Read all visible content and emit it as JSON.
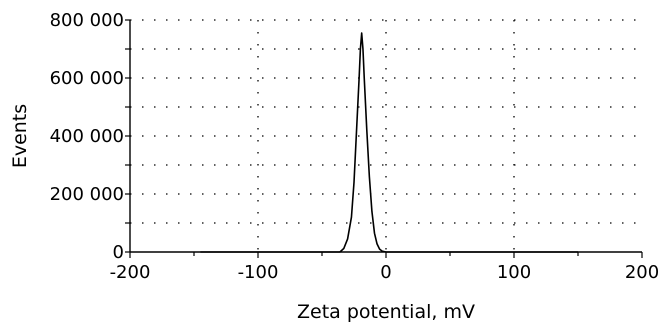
{
  "chart_data": {
    "type": "line",
    "title": "",
    "xlabel": "Zeta potential, mV",
    "ylabel": "Events",
    "xlim": [
      -200,
      200
    ],
    "ylim": [
      0,
      800000
    ],
    "x_ticks": [
      -200,
      -100,
      0,
      100,
      200
    ],
    "x_tick_labels": [
      "-200",
      "-100",
      "0",
      "100",
      "200"
    ],
    "y_ticks": [
      0,
      200000,
      400000,
      600000,
      800000
    ],
    "y_tick_labels": [
      "0",
      "200 000",
      "400 000",
      "600 000",
      "800 000"
    ],
    "grid": "dotted",
    "legend": "none",
    "series": [
      {
        "color": "#000000",
        "x": [
          -145,
          -50,
          -36,
          -33,
          -30,
          -27,
          -25,
          -23,
          -21,
          -20,
          -19,
          -18,
          -17,
          -15,
          -13,
          -11,
          -9,
          -7,
          -5,
          -3,
          0,
          150
        ],
        "y": [
          0,
          0,
          0,
          12000,
          45000,
          120000,
          240000,
          420000,
          600000,
          700000,
          755000,
          700000,
          600000,
          420000,
          260000,
          140000,
          65000,
          28000,
          10000,
          3000,
          0,
          0
        ]
      }
    ]
  }
}
